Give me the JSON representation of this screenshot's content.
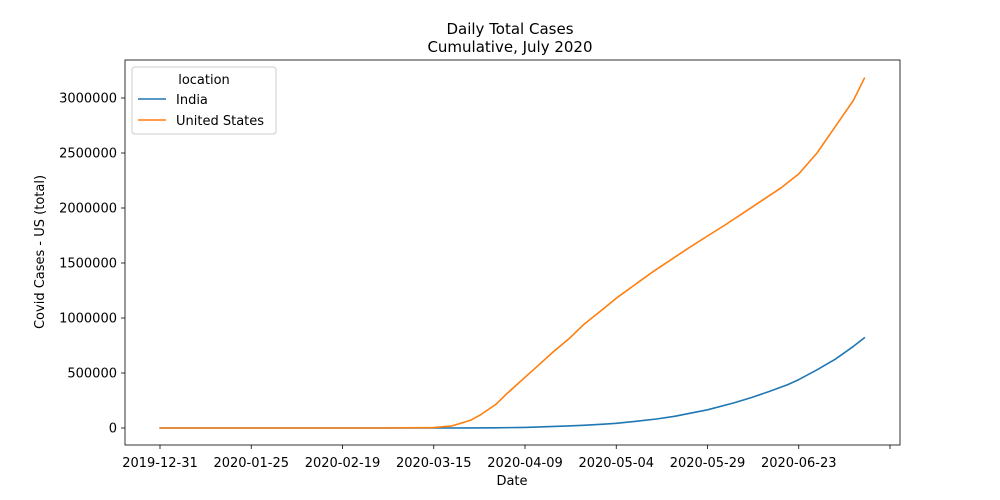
{
  "chart_data": {
    "type": "line",
    "title": "Daily Total Cases",
    "subtitle": "Cumulative, July 2020",
    "xlabel": "Date",
    "ylabel": "Covid Cases - US (total)",
    "x_axis": {
      "type": "date",
      "range": [
        "2019-12-31",
        "2020-07-18"
      ],
      "tick_labels": [
        "2019-12-31",
        "2020-01-25",
        "2020-02-19",
        "2020-03-15",
        "2020-04-09",
        "2020-05-04",
        "2020-05-29",
        "2020-06-23",
        ""
      ]
    },
    "y_axis": {
      "range": [
        0,
        3200000
      ],
      "tick_values": [
        0,
        500000,
        1000000,
        1500000,
        2000000,
        2500000,
        3000000
      ],
      "tick_labels": [
        "0",
        "500000",
        "1000000",
        "1500000",
        "2000000",
        "2500000",
        "3000000"
      ]
    },
    "grid": false,
    "legend": {
      "title": "location",
      "placement": "top-left"
    },
    "series": [
      {
        "name": "India",
        "color": "#1f77b4",
        "points": [
          [
            "2019-12-31",
            0
          ],
          [
            "2020-01-30",
            1
          ],
          [
            "2020-03-01",
            3
          ],
          [
            "2020-03-15",
            110
          ],
          [
            "2020-03-25",
            600
          ],
          [
            "2020-04-01",
            1800
          ],
          [
            "2020-04-09",
            5700
          ],
          [
            "2020-04-15",
            11500
          ],
          [
            "2020-04-20",
            17300
          ],
          [
            "2020-04-25",
            24400
          ],
          [
            "2020-05-01",
            35000
          ],
          [
            "2020-05-04",
            42500
          ],
          [
            "2020-05-10",
            62900
          ],
          [
            "2020-05-15",
            81900
          ],
          [
            "2020-05-20",
            106700
          ],
          [
            "2020-05-25",
            138800
          ],
          [
            "2020-05-29",
            165800
          ],
          [
            "2020-06-05",
            226800
          ],
          [
            "2020-06-10",
            276600
          ],
          [
            "2020-06-15",
            332400
          ],
          [
            "2020-06-20",
            395000
          ],
          [
            "2020-06-23",
            440200
          ],
          [
            "2020-06-28",
            528900
          ],
          [
            "2020-07-03",
            625500
          ],
          [
            "2020-07-08",
            742400
          ],
          [
            "2020-07-11",
            820900
          ]
        ]
      },
      {
        "name": "United States",
        "color": "#ff7f0e",
        "points": [
          [
            "2019-12-31",
            0
          ],
          [
            "2020-01-21",
            1
          ],
          [
            "2020-02-19",
            15
          ],
          [
            "2020-03-01",
            75
          ],
          [
            "2020-03-15",
            3500
          ],
          [
            "2020-03-20",
            19000
          ],
          [
            "2020-03-25",
            69000
          ],
          [
            "2020-03-28",
            124000
          ],
          [
            "2020-04-01",
            215000
          ],
          [
            "2020-04-04",
            312000
          ],
          [
            "2020-04-09",
            461000
          ],
          [
            "2020-04-13",
            580000
          ],
          [
            "2020-04-17",
            700000
          ],
          [
            "2020-04-21",
            810000
          ],
          [
            "2020-04-25",
            938000
          ],
          [
            "2020-04-30",
            1070000
          ],
          [
            "2020-05-04",
            1180000
          ],
          [
            "2020-05-09",
            1300000
          ],
          [
            "2020-05-14",
            1420000
          ],
          [
            "2020-05-19",
            1530000
          ],
          [
            "2020-05-24",
            1640000
          ],
          [
            "2020-05-29",
            1745000
          ],
          [
            "2020-06-03",
            1850000
          ],
          [
            "2020-06-08",
            1960000
          ],
          [
            "2020-06-13",
            2070000
          ],
          [
            "2020-06-18",
            2180000
          ],
          [
            "2020-06-23",
            2310000
          ],
          [
            "2020-06-28",
            2500000
          ],
          [
            "2020-07-03",
            2740000
          ],
          [
            "2020-07-08",
            2980000
          ],
          [
            "2020-07-11",
            3180000
          ]
        ]
      }
    ]
  }
}
